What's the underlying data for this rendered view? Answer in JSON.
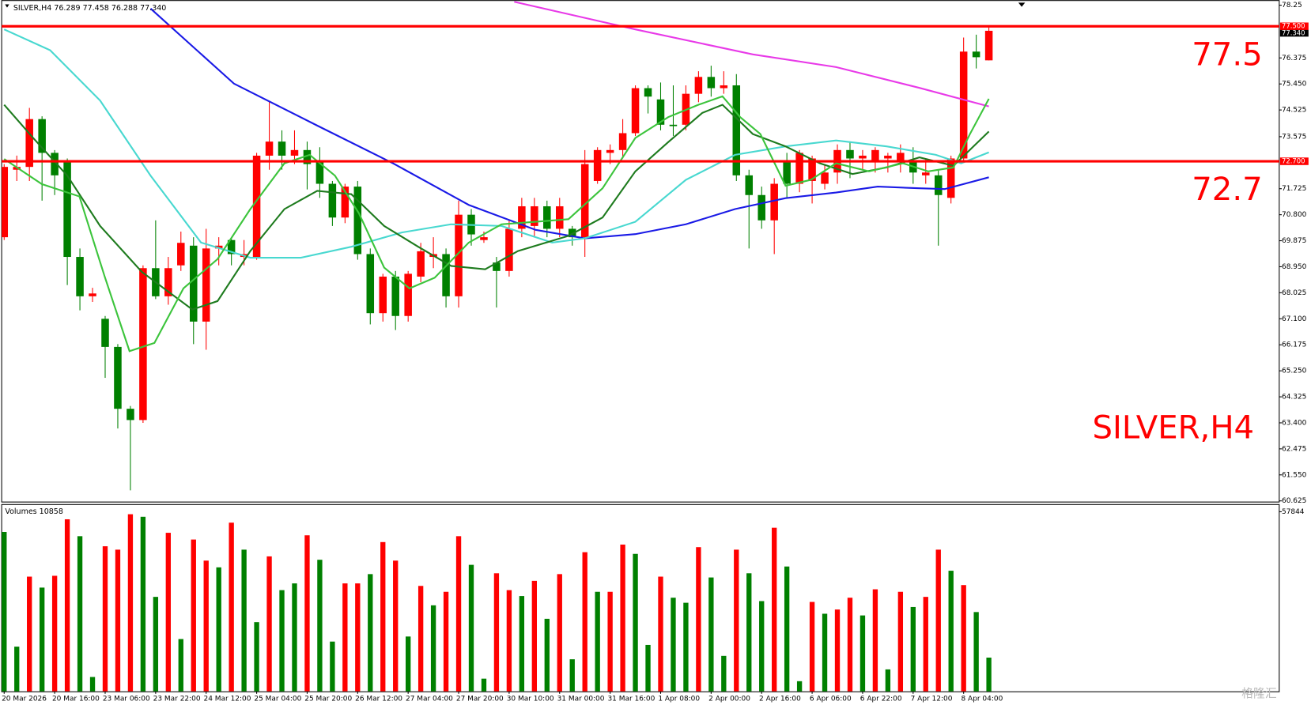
{
  "chart_data": {
    "type": "candlestick",
    "header": "SILVER,H4  76.289 77.458 76.288 77.340",
    "annotation": "SILVER,H4",
    "watermark": "格隆汇",
    "categories": [
      "20 Mar 2026",
      null,
      null,
      null,
      "20 Mar 16:00",
      null,
      null,
      null,
      "23 Mar 06:00",
      null,
      null,
      null,
      "23 Mar 22:00",
      null,
      null,
      null,
      "24 Mar 12:00",
      null,
      null,
      null,
      "25 Mar 04:00",
      null,
      null,
      null,
      "25 Mar 20:00",
      null,
      null,
      null,
      "26 Mar 12:00",
      null,
      null,
      null,
      "27 Mar 04:00",
      null,
      null,
      null,
      "27 Mar 20:00",
      null,
      null,
      null,
      "30 Mar 10:00",
      null,
      null,
      null,
      "31 Mar 00:00",
      null,
      null,
      null,
      "31 Mar 16:00",
      null,
      null,
      null,
      "1 Apr 08:00",
      null,
      null,
      null,
      "2 Apr 00:00",
      null,
      null,
      null,
      "2 Apr 16:00",
      null,
      null,
      null,
      "6 Apr 06:00",
      null,
      null,
      null,
      "6 Apr 22:00",
      null,
      null,
      null,
      "7 Apr 12:00",
      null,
      null,
      null,
      "8 Apr 04:00",
      null,
      null
    ],
    "xlim": [
      -0.33,
      101
    ],
    "open": [
      70.0,
      72.4,
      72.5,
      74.2,
      73.0,
      72.7,
      69.3,
      67.9,
      67.1,
      66.1,
      63.9,
      63.5,
      68.9,
      67.9,
      69.0,
      69.7,
      67.0,
      69.6,
      69.9,
      69.3,
      69.3,
      72.9,
      73.4,
      72.9,
      73.1,
      72.7,
      71.9,
      70.7,
      71.8,
      69.4,
      67.3,
      68.6,
      67.2,
      68.6,
      69.3,
      69.4,
      67.9,
      70.8,
      69.9,
      69.1,
      68.8,
      70.3,
      70.4,
      71.1,
      70.3,
      70.3,
      70.0,
      72.0,
      73.0,
      73.1,
      73.7,
      75.3,
      74.9,
      74.0,
      74.0,
      75.1,
      75.7,
      75.3,
      75.4,
      72.2,
      71.5,
      70.6,
      72.7,
      71.9,
      72.0,
      71.9,
      72.3,
      73.1,
      72.8,
      72.7,
      72.8,
      72.7,
      72.7,
      72.2,
      72.2,
      71.4,
      72.8,
      76.6,
      76.289
    ],
    "high": [
      72.6,
      72.9,
      74.6,
      74.3,
      73.1,
      72.8,
      69.6,
      68.2,
      67.2,
      66.2,
      64.0,
      69.0,
      70.6,
      69.3,
      70.2,
      70.0,
      70.3,
      70.0,
      70.0,
      69.9,
      73.0,
      74.8,
      73.8,
      73.8,
      73.4,
      73.2,
      72.0,
      71.9,
      72.0,
      69.6,
      68.7,
      68.8,
      68.8,
      69.8,
      70.0,
      69.6,
      71.3,
      71.0,
      70.2,
      69.3,
      70.6,
      71.4,
      71.4,
      71.3,
      71.4,
      70.4,
      73.1,
      73.2,
      73.3,
      74.2,
      75.4,
      75.4,
      75.5,
      75.4,
      75.4,
      75.9,
      76.1,
      75.9,
      75.8,
      72.4,
      71.8,
      72.1,
      73.0,
      73.1,
      72.9,
      72.6,
      73.3,
      73.4,
      73.1,
      73.2,
      73.0,
      73.3,
      73.2,
      72.8,
      72.4,
      72.9,
      77.1,
      77.2,
      77.458
    ],
    "low": [
      69.9,
      72.0,
      72.0,
      71.3,
      71.5,
      68.3,
      67.4,
      67.7,
      65.0,
      63.2,
      61.0,
      63.4,
      67.8,
      67.6,
      68.8,
      66.2,
      66.0,
      69.0,
      69.0,
      69.0,
      69.2,
      72.4,
      72.4,
      72.6,
      71.7,
      71.4,
      70.4,
      70.5,
      69.2,
      66.9,
      67.0,
      66.7,
      67.0,
      68.4,
      68.9,
      67.5,
      67.5,
      69.7,
      69.8,
      67.5,
      68.6,
      70.0,
      70.0,
      70.0,
      70.0,
      69.7,
      69.3,
      71.9,
      72.6,
      72.8,
      73.6,
      74.4,
      73.8,
      73.6,
      73.8,
      74.8,
      75.0,
      75.1,
      72.0,
      69.6,
      70.3,
      69.4,
      71.4,
      71.6,
      71.2,
      71.7,
      71.9,
      72.1,
      72.4,
      72.3,
      72.3,
      72.3,
      71.9,
      71.9,
      69.7,
      71.2,
      72.7,
      76.0,
      76.288
    ],
    "close": [
      72.5,
      72.5,
      74.2,
      73.0,
      72.2,
      69.3,
      67.9,
      68.0,
      66.1,
      63.9,
      63.5,
      68.9,
      67.9,
      68.9,
      69.8,
      67.0,
      69.6,
      69.7,
      69.4,
      69.4,
      72.9,
      73.4,
      72.9,
      73.1,
      72.6,
      71.9,
      70.7,
      71.8,
      69.4,
      67.3,
      68.6,
      67.2,
      68.7,
      69.5,
      69.4,
      67.9,
      70.8,
      70.1,
      70.0,
      68.8,
      70.3,
      71.1,
      71.1,
      70.3,
      71.1,
      70.0,
      72.6,
      73.1,
      73.1,
      73.7,
      75.3,
      75.0,
      74.0,
      73.95,
      75.1,
      75.7,
      75.3,
      75.4,
      72.2,
      71.5,
      70.6,
      71.9,
      71.9,
      73.0,
      72.8,
      72.3,
      73.1,
      72.8,
      72.9,
      73.1,
      72.9,
      73.0,
      72.3,
      72.3,
      71.5,
      72.8,
      76.6,
      76.4,
      77.34
    ],
    "up_color": "#ff0000",
    "down_color": "#008000",
    "ylim": [
      60.6,
      78.43
    ],
    "yticks": [
      78.25,
      76.375,
      {
        "value": 75.45,
        "label": "75.450"
      },
      74.525,
      73.575,
      71.725,
      {
        "value": 70.8,
        "label": "70.800"
      },
      69.875,
      {
        "value": 68.95,
        "label": "68.950"
      },
      68.025,
      {
        "value": 67.1,
        "label": "67.100"
      },
      66.175,
      {
        "value": 65.25,
        "label": "65.250"
      },
      64.325,
      {
        "value": 63.4,
        "label": "63.400"
      },
      62.475,
      {
        "value": 61.55,
        "label": "61.550"
      },
      60.625
    ],
    "series": [
      {
        "color": "#1a1ae6",
        "x": [
          11.6,
          18.2,
          24.8,
          30.8,
          36.8,
          42.1,
          46.0,
          50.0,
          54.0,
          57.9,
          61.9,
          65.9,
          69.2,
          72.5,
          74.5,
          78.0
        ],
        "values": [
          78.13,
          75.46,
          73.97,
          72.63,
          71.15,
          70.26,
          69.96,
          70.11,
          70.46,
          71.0,
          71.39,
          71.59,
          71.8,
          71.74,
          71.71,
          72.13
        ]
      },
      {
        "color": "#e83ae8",
        "x": [
          40.4,
          50.0,
          59.3,
          65.9,
          72.5,
          78.0
        ],
        "values": [
          78.37,
          77.39,
          76.5,
          76.05,
          75.31,
          74.65
        ]
      },
      {
        "color": "#48d8d0",
        "x": [
          0,
          3.64,
          7.6,
          11.6,
          15.6,
          19.5,
          23.5,
          27.5,
          31.5,
          35.4,
          39.4,
          43.4,
          46.0,
          50.0,
          54.0,
          57.9,
          61.9,
          65.9,
          69.9,
          73.8,
          75.8,
          78.0
        ],
        "values": [
          77.39,
          76.65,
          74.86,
          72.19,
          69.81,
          69.27,
          69.27,
          69.66,
          70.17,
          70.46,
          70.4,
          69.81,
          69.96,
          70.55,
          72.04,
          72.93,
          73.23,
          73.44,
          73.23,
          72.93,
          72.63,
          73.02
        ]
      },
      {
        "color": "#1e7b1e",
        "x": [
          0,
          2.3,
          5.0,
          7.6,
          10.9,
          14.9,
          16.9,
          19.5,
          22.2,
          24.8,
          27.5,
          30.1,
          32.8,
          35.4,
          38.1,
          40.7,
          44.7,
          47.4,
          50.0,
          52.6,
          55.3,
          56.9,
          59.3,
          61.9,
          64.6,
          67.2,
          69.9,
          72.5,
          75.2,
          78.0
        ],
        "values": [
          74.71,
          73.53,
          72.19,
          70.4,
          68.77,
          67.43,
          67.73,
          69.51,
          71.0,
          71.65,
          71.53,
          70.4,
          69.66,
          68.98,
          68.86,
          69.51,
          70.05,
          70.7,
          72.34,
          73.38,
          74.42,
          74.71,
          73.67,
          73.23,
          72.63,
          72.25,
          72.48,
          72.84,
          72.54,
          73.76
        ]
      },
      {
        "color": "#3cc43c",
        "x": [
          0,
          2.98,
          5.96,
          7.95,
          9.93,
          11.9,
          14.2,
          16.9,
          19.5,
          22.2,
          24.2,
          26.2,
          28.1,
          30.1,
          32.1,
          34.1,
          36.8,
          39.4,
          42.1,
          44.7,
          47.4,
          50.0,
          52.6,
          55.0,
          56.9,
          58.3,
          59.9,
          61.9,
          63.9,
          65.9,
          68.5,
          71.2,
          73.2,
          75.2,
          76.5,
          78.0
        ],
        "values": [
          72.78,
          71.89,
          71.45,
          68.62,
          65.95,
          66.24,
          68.18,
          69.22,
          71.0,
          72.63,
          72.93,
          72.19,
          70.85,
          68.92,
          68.18,
          68.56,
          69.81,
          70.46,
          70.55,
          70.64,
          71.74,
          73.53,
          74.27,
          74.71,
          75.01,
          74.27,
          73.67,
          71.83,
          72.04,
          72.63,
          72.34,
          72.63,
          72.34,
          72.48,
          73.67,
          74.92
        ]
      }
    ],
    "hlines": [
      {
        "value": 77.5,
        "tag": "77.500",
        "label": "77.5",
        "color": "#ff0000"
      },
      {
        "value": 72.7,
        "tag": "72.700",
        "label": "72.7",
        "color": "#ff0000"
      }
    ],
    "last_price": {
      "value": 77.34,
      "label": "77.340"
    },
    "volume": {
      "label": "Volumes 10858",
      "ylim": [
        0,
        60300
      ],
      "yticks": [
        57844
      ],
      "values": [
        51330,
        14390,
        36940,
        33410,
        37210,
        55410,
        49970,
        4620,
        46720,
        45630,
        57040,
        56220,
        30420,
        51060,
        16840,
        48890,
        42100,
        39930,
        54320,
        45630,
        22270,
        43460,
        32590,
        34760,
        50250,
        42370,
        16020,
        34760,
        34760,
        37750,
        48070,
        42100,
        17650,
        33950,
        27700,
        32050,
        49970,
        40740,
        4070,
        38020,
        32590,
        30690,
        35580,
        23360,
        37750,
        10320,
        44810,
        32050,
        32050,
        47260,
        44270,
        14940,
        36940,
        30150,
        28520,
        46440,
        36670,
        11410,
        45630,
        38020,
        29060,
        52690,
        40200,
        3260,
        28790,
        24990,
        26350,
        30150,
        24440,
        32860,
        7060,
        32050,
        27160,
        30420,
        45630,
        38840,
        34220,
        25530,
        10858
      ],
      "colors": [
        "#008000",
        "#008000",
        "#ff0000",
        "#008000",
        "#ff0000",
        "#ff0000",
        "#008000",
        "#008000",
        "#ff0000",
        "#ff0000",
        "#ff0000",
        "#008000",
        "#008000",
        "#ff0000",
        "#008000",
        "#ff0000",
        "#ff0000",
        "#008000",
        "#ff0000",
        "#008000",
        "#008000",
        "#ff0000",
        "#008000",
        "#008000",
        "#ff0000",
        "#008000",
        "#008000",
        "#ff0000",
        "#ff0000",
        "#008000",
        "#ff0000",
        "#ff0000",
        "#008000",
        "#ff0000",
        "#008000",
        "#ff0000",
        "#ff0000",
        "#008000",
        "#008000",
        "#ff0000",
        "#ff0000",
        "#008000",
        "#ff0000",
        "#008000",
        "#ff0000",
        "#008000",
        "#ff0000",
        "#008000",
        "#ff0000",
        "#ff0000",
        "#008000",
        "#008000",
        "#ff0000",
        "#008000",
        "#008000",
        "#ff0000",
        "#008000",
        "#008000",
        "#ff0000",
        "#008000",
        "#008000",
        "#ff0000",
        "#008000",
        "#008000",
        "#ff0000",
        "#008000",
        "#ff0000",
        "#ff0000",
        "#008000",
        "#ff0000",
        "#008000",
        "#ff0000",
        "#008000",
        "#ff0000",
        "#ff0000",
        "#008000",
        "#ff0000",
        "#008000",
        "#008000"
      ]
    }
  }
}
